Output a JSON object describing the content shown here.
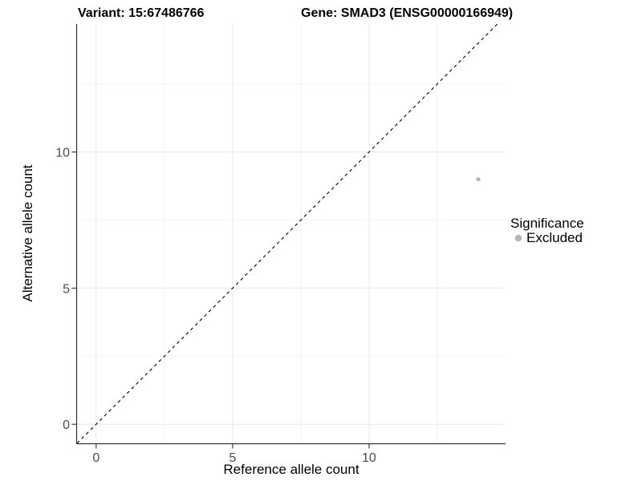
{
  "title": {
    "variant": "Variant: 15:67486766",
    "gene": "Gene: SMAD3 (ENSG00000166949)"
  },
  "legend": {
    "title": "Significance",
    "items": [
      {
        "label": "Excluded",
        "color": "#b5b5b5"
      }
    ]
  },
  "chart_data": {
    "type": "scatter",
    "title": "Variant: 15:67486766    Gene: SMAD3 (ENSG00000166949)",
    "xlabel": "Reference allele count",
    "ylabel": "Alternative allele count",
    "xlim": [
      -0.7,
      15.0
    ],
    "ylim": [
      -0.7,
      14.7
    ],
    "x_ticks": [
      0,
      5,
      10
    ],
    "y_ticks": [
      0,
      5,
      10
    ],
    "x_minor_breaks": [
      2.5,
      7.5,
      12.5
    ],
    "y_minor_breaks": [
      2.5,
      7.5,
      12.5
    ],
    "grid": "major and minor, light gray on white",
    "legend_position": "right-middle",
    "series": [
      {
        "name": "Excluded",
        "color": "#b5b5b5",
        "points": [
          {
            "x": 14,
            "y": 9
          }
        ]
      }
    ],
    "reference_line": {
      "kind": "identity y=x",
      "style": "dashed",
      "color": "#000000",
      "from": [
        -0.7,
        -0.7
      ],
      "to": [
        14.7,
        14.7
      ]
    }
  }
}
